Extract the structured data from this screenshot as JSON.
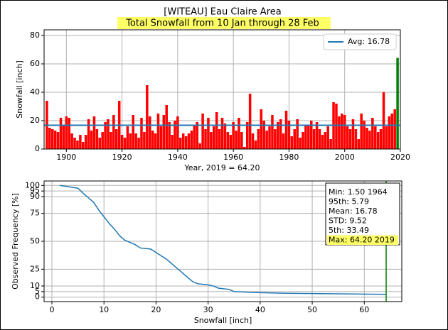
{
  "chart_data": [
    {
      "type": "bar",
      "title": "[WITEAU] Eau Claire Area",
      "subtitle": "Total Snowfall from 10 Jan through 28 Feb",
      "xlabel": "Year, 2019 = 64.20",
      "ylabel": "Snowfall [inch]",
      "x": [
        1893,
        1894,
        1895,
        1896,
        1897,
        1898,
        1899,
        1900,
        1901,
        1902,
        1903,
        1904,
        1905,
        1906,
        1907,
        1908,
        1909,
        1910,
        1911,
        1912,
        1913,
        1914,
        1915,
        1916,
        1917,
        1918,
        1919,
        1920,
        1921,
        1922,
        1923,
        1924,
        1925,
        1926,
        1927,
        1928,
        1929,
        1930,
        1931,
        1932,
        1933,
        1934,
        1935,
        1936,
        1937,
        1938,
        1939,
        1940,
        1941,
        1942,
        1943,
        1944,
        1945,
        1946,
        1947,
        1948,
        1949,
        1950,
        1951,
        1952,
        1953,
        1954,
        1955,
        1956,
        1957,
        1958,
        1959,
        1960,
        1961,
        1962,
        1963,
        1964,
        1965,
        1966,
        1967,
        1968,
        1969,
        1970,
        1971,
        1972,
        1973,
        1974,
        1975,
        1976,
        1977,
        1978,
        1979,
        1980,
        1981,
        1982,
        1983,
        1984,
        1985,
        1986,
        1987,
        1988,
        1989,
        1990,
        1991,
        1992,
        1993,
        1994,
        1995,
        1996,
        1997,
        1998,
        1999,
        2000,
        2001,
        2002,
        2003,
        2004,
        2005,
        2006,
        2007,
        2008,
        2009,
        2010,
        2011,
        2012,
        2013,
        2014,
        2015,
        2016,
        2017,
        2018,
        2019
      ],
      "values": [
        34,
        15,
        14,
        13,
        12,
        22,
        17,
        23,
        22,
        11,
        8,
        6,
        10,
        5,
        10,
        21,
        13,
        23,
        14,
        8,
        12,
        19,
        21,
        12,
        24,
        14,
        34,
        10,
        8,
        16,
        11,
        24,
        11,
        8,
        22,
        12,
        45,
        23,
        13,
        11,
        25,
        16,
        24,
        31,
        19,
        10,
        20,
        23,
        8,
        11,
        9,
        11,
        13,
        17,
        19,
        4,
        25,
        14,
        22,
        12,
        16,
        26,
        14,
        22,
        18,
        12,
        10,
        19,
        13,
        22,
        12,
        1.5,
        19,
        39,
        11,
        6,
        14,
        28,
        20,
        13,
        16,
        24,
        14,
        19,
        21,
        11,
        27,
        20,
        9,
        14,
        21,
        8,
        12,
        17,
        17,
        20,
        14,
        19,
        14,
        10,
        12,
        16,
        7,
        33,
        32,
        23,
        25,
        24,
        16,
        14,
        21,
        14,
        7,
        25,
        20,
        15,
        13,
        22,
        16,
        12,
        14,
        40,
        16,
        23,
        25,
        28,
        64.2
      ],
      "color": "#ff0000",
      "last_color": "#008000",
      "avg": 16.78,
      "avg_label": "Avg: 16.78",
      "avg_color": "#1f77b4",
      "legend": "upper right",
      "xlim": [
        1892,
        2020
      ],
      "xticks": [
        1900,
        1920,
        1940,
        1960,
        1980,
        2000,
        2020
      ],
      "ylim": [
        0,
        84
      ],
      "yticks": [
        0,
        20,
        40,
        60,
        80
      ],
      "grid": true
    },
    {
      "type": "line",
      "xlabel": "Snowfall [inch]",
      "ylabel": "Observed Frequency [%]",
      "x": [
        1.5,
        3,
        5,
        6,
        7,
        8,
        9,
        10,
        11,
        12,
        13,
        14,
        15,
        16,
        17,
        19,
        20,
        22,
        23,
        24,
        25,
        26,
        27,
        28,
        30,
        31,
        32,
        34,
        35,
        40,
        45,
        64.2
      ],
      "values": [
        100,
        99,
        97.5,
        93,
        89,
        85,
        78,
        72,
        66,
        61,
        55,
        51,
        49,
        47,
        44,
        43,
        40,
        34,
        30,
        26,
        22,
        18,
        14,
        12,
        11,
        10,
        8,
        7,
        5,
        4,
        3.5,
        2.5
      ],
      "color": "#1f77b4",
      "vline": 64.2,
      "vline_color": "#008000",
      "stats": [
        "Min: 1.50 1964",
        "95th: 5.79",
        "Mean: 16.78",
        "STD: 9.52",
        "5th: 33.49",
        "Max: 64.20 2019"
      ],
      "xlim": [
        -1.5,
        67.2
      ],
      "xticks": [
        0,
        10,
        20,
        30,
        40,
        50,
        60
      ],
      "ylim": [
        -4,
        104
      ],
      "yticks": [
        0,
        5,
        10,
        25,
        50,
        75,
        90,
        95,
        100
      ],
      "grid": true
    }
  ]
}
